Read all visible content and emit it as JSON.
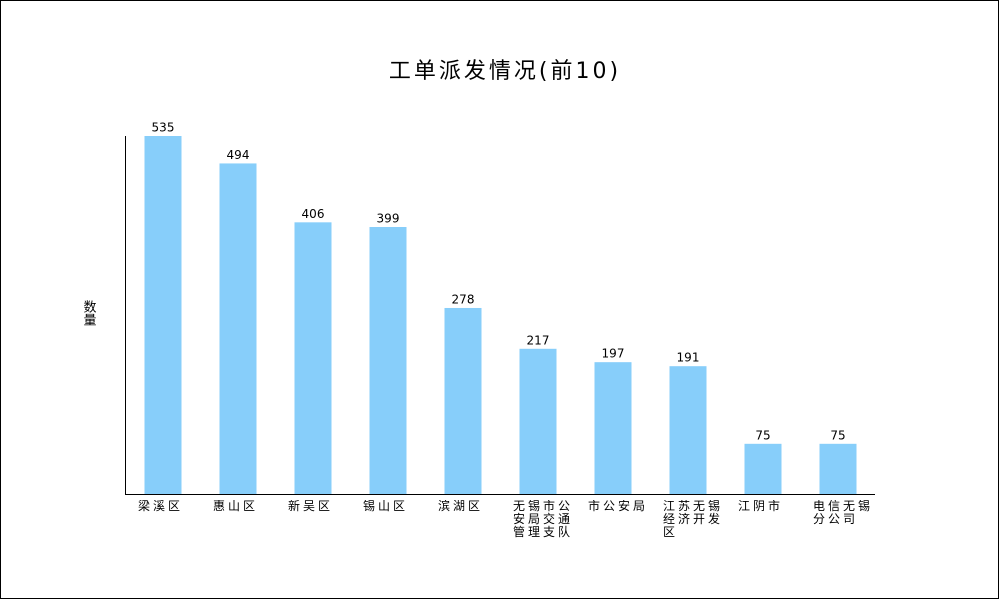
{
  "chart_data": {
    "type": "bar",
    "title": "工单派发情况(前10)",
    "y_label": "数量",
    "categories": [
      "梁溪区",
      "惠山区",
      "新吴区",
      "锡山区",
      "滨湖区",
      "无锡市公安局交通管理支队",
      "市公安局",
      "江苏无锡经济开发区",
      "江阴市",
      "电信无锡分公司"
    ],
    "values": [
      535,
      494,
      406,
      399,
      278,
      217,
      197,
      191,
      75,
      75
    ],
    "color": "#87cefa",
    "ylim": [
      0,
      535
    ]
  }
}
